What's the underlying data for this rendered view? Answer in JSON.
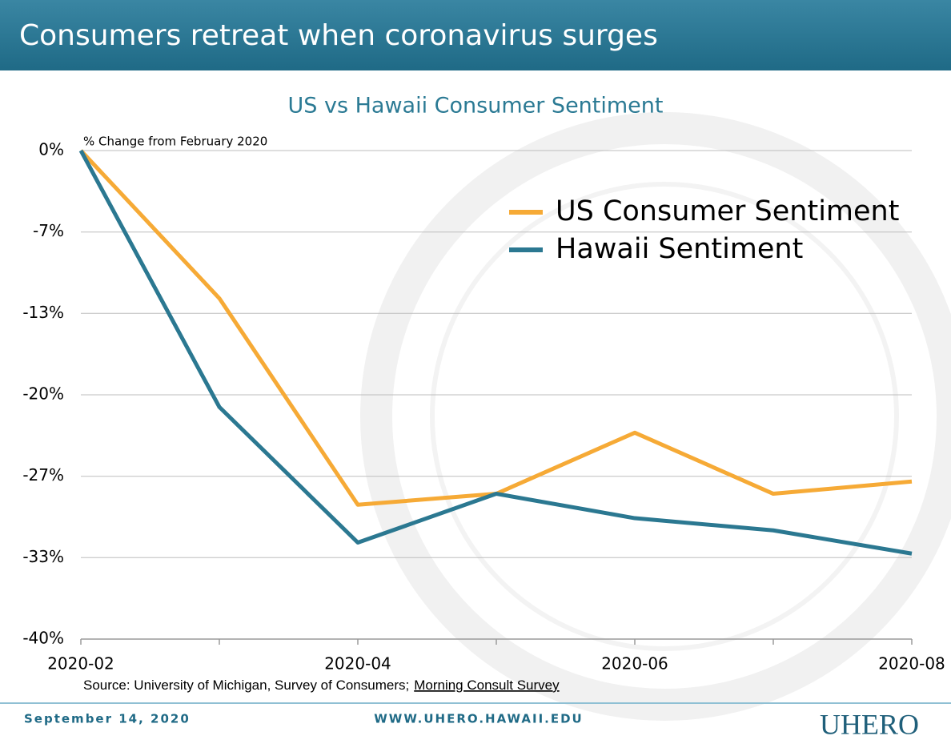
{
  "header": {
    "title": "Consumers retreat when coronavirus surges"
  },
  "chart_data": {
    "type": "line",
    "title": "US vs Hawaii Consumer Sentiment",
    "y_label": "% Change from February 2020",
    "categories": [
      "2020-02",
      null,
      "2020-04",
      null,
      "2020-06",
      null,
      "2020-08"
    ],
    "series": [
      {
        "name": "US Consumer Sentiment",
        "color": "#f6aa36",
        "values": [
          0,
          -12.1,
          -29.0,
          -28.1,
          -23.1,
          -28.1,
          -27.1
        ]
      },
      {
        "name": "Hawaii Sentiment",
        "color": "#2b7891",
        "values": [
          0,
          -21.0,
          -32.1,
          -28.1,
          -30.1,
          -31.1,
          -33.0
        ]
      }
    ],
    "ylim": [
      -40,
      0
    ],
    "yticks": [
      {
        "value": 0,
        "label": "0%"
      },
      {
        "value": -6.67,
        "label": "-7%"
      },
      {
        "value": -13.33,
        "label": "-13%"
      },
      {
        "value": -20,
        "label": "-20%"
      },
      {
        "value": -26.67,
        "label": "-27%"
      },
      {
        "value": -33.33,
        "label": "-33%"
      },
      {
        "value": -40,
        "label": "-40%"
      }
    ],
    "grid": true,
    "legend": "upper right",
    "source": {
      "text": "Source: University of Michigan, Survey of Consumers;",
      "link": "Morning Consult Survey"
    }
  },
  "footer": {
    "date": "September 14, 2020",
    "url": "WWW.UHERO.HAWAII.EDU",
    "logo": "UHERO"
  }
}
